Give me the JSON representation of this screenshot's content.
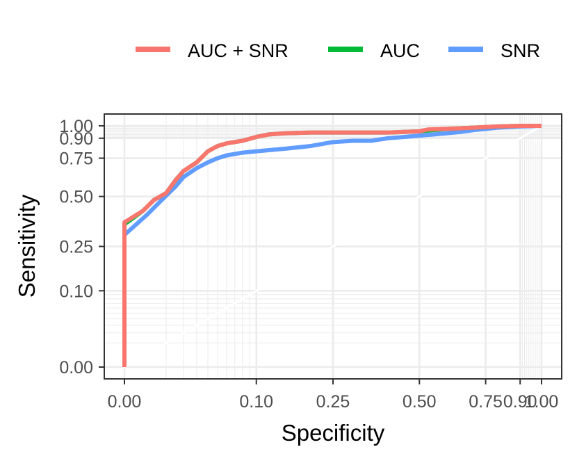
{
  "chart_data": {
    "type": "line",
    "title": "",
    "xlabel": "Specificity",
    "ylabel": "Sensitivity",
    "xlim": [
      0,
      1
    ],
    "ylim": [
      0,
      1
    ],
    "x_scale": "square-root",
    "y_scale": "square-root",
    "x_ticks": [
      0,
      0.1,
      0.25,
      0.5,
      0.75,
      0.9,
      1
    ],
    "x_tick_labels": [
      "0.00",
      "0.10",
      "0.25",
      "0.50",
      "0.75",
      "0.90",
      "1.00"
    ],
    "y_ticks": [
      0,
      0.1,
      0.25,
      0.5,
      0.75,
      0.9,
      1
    ],
    "y_tick_labels": [
      "0.00",
      "0.10",
      "0.25",
      "0.50",
      "0.75",
      "0.90",
      "1.00"
    ],
    "grid": true,
    "legend_position": "top",
    "diagonal_reference_line": true,
    "series": [
      {
        "name": "AUC + SNR",
        "color": "#F8766D",
        "x": [
          0,
          0,
          0.002,
          0.005,
          0.01,
          0.015,
          0.02,
          0.03,
          0.04,
          0.05,
          0.06,
          0.08,
          0.1,
          0.12,
          0.15,
          0.2,
          0.3,
          0.4,
          0.45,
          0.5,
          0.53,
          0.6,
          0.7,
          0.75,
          0.8,
          0.9,
          1
        ],
        "y": [
          0,
          0.36,
          0.42,
          0.48,
          0.52,
          0.6,
          0.66,
          0.72,
          0.8,
          0.84,
          0.86,
          0.88,
          0.91,
          0.93,
          0.94,
          0.945,
          0.945,
          0.945,
          0.95,
          0.955,
          0.97,
          0.975,
          0.985,
          0.99,
          0.995,
          1,
          1
        ]
      },
      {
        "name": "AUC",
        "color": "#00BA38",
        "x": [
          0,
          0,
          0.002,
          0.005,
          0.01,
          0.015,
          0.02,
          0.03,
          0.04,
          0.05,
          0.06,
          0.08,
          0.1,
          0.12,
          0.15,
          0.2,
          0.3,
          0.4,
          0.45,
          0.5,
          0.55,
          0.6,
          0.7,
          0.75,
          0.8,
          0.9,
          1
        ],
        "y": [
          0,
          0.35,
          0.42,
          0.48,
          0.52,
          0.6,
          0.66,
          0.72,
          0.8,
          0.84,
          0.86,
          0.88,
          0.91,
          0.93,
          0.94,
          0.945,
          0.945,
          0.945,
          0.95,
          0.955,
          0.965,
          0.975,
          0.985,
          0.99,
          0.995,
          1,
          1
        ]
      },
      {
        "name": "SNR",
        "color": "#619CFF",
        "x": [
          0,
          0,
          0.003,
          0.008,
          0.015,
          0.02,
          0.03,
          0.04,
          0.05,
          0.06,
          0.08,
          0.1,
          0.15,
          0.2,
          0.25,
          0.3,
          0.35,
          0.4,
          0.45,
          0.5,
          0.55,
          0.6,
          0.65,
          0.7,
          0.75,
          0.8,
          0.9,
          1
        ],
        "y": [
          0,
          0.3,
          0.4,
          0.48,
          0.56,
          0.62,
          0.68,
          0.72,
          0.75,
          0.77,
          0.79,
          0.8,
          0.82,
          0.84,
          0.87,
          0.88,
          0.88,
          0.9,
          0.91,
          0.92,
          0.93,
          0.94,
          0.95,
          0.965,
          0.975,
          0.985,
          0.995,
          1
        ]
      }
    ]
  }
}
